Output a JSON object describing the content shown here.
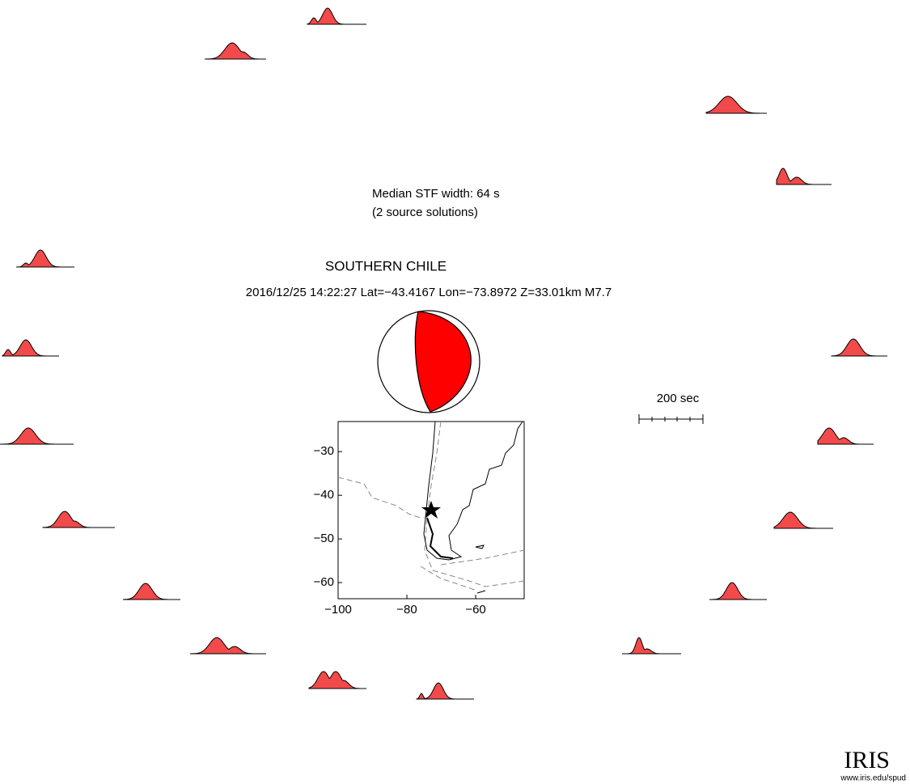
{
  "summary": {
    "line1": "Median STF width: 64 s",
    "line2": "(2 source solutions)"
  },
  "title": "SOUTHERN CHILE",
  "event": "2016/12/25 14:22:27  Lat=−43.4167 Lon=−73.8972  Z=33.01km  M7.7",
  "scale_label": "200 sec",
  "map": {
    "xlim": [
      -100,
      -45.9
    ],
    "ylim": [
      -23.1,
      -63.7
    ],
    "xticks": [
      {
        "value": -100,
        "label": "−100"
      },
      {
        "value": -80,
        "label": "−80"
      },
      {
        "value": -60,
        "label": "−60"
      }
    ],
    "yticks": [
      {
        "value": -30,
        "label": "−30"
      },
      {
        "value": -40,
        "label": "−40"
      },
      {
        "value": -50,
        "label": "−50"
      },
      {
        "value": -60,
        "label": "−60"
      }
    ]
  },
  "logo": {
    "name": "IRIS",
    "url": "www.iris.edu/spud"
  }
}
